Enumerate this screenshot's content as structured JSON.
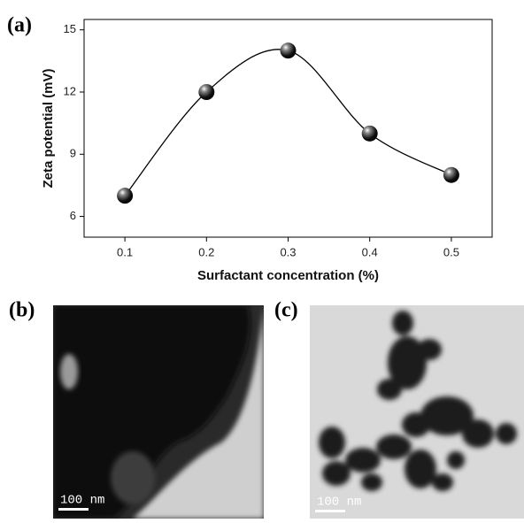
{
  "chart_data": {
    "type": "line",
    "x_label": "Surfactant concentration (%)",
    "y_label": "Zeta potential (mV)",
    "x": [
      0.1,
      0.2,
      0.3,
      0.4,
      0.5
    ],
    "values": [
      7,
      12,
      14,
      10,
      8
    ],
    "color": "#000000",
    "xlim": [
      0.05,
      0.55
    ],
    "xticks": [
      0.1,
      0.2,
      0.3,
      0.4,
      0.5
    ],
    "ylim": [
      5,
      15.5
    ],
    "yticks": [
      6,
      9,
      12,
      15
    ],
    "smooth": true
  },
  "panel_labels": [
    "(a)",
    "(b)",
    "(c)"
  ],
  "scale_bars": [
    "100 nm",
    "100 nm"
  ]
}
